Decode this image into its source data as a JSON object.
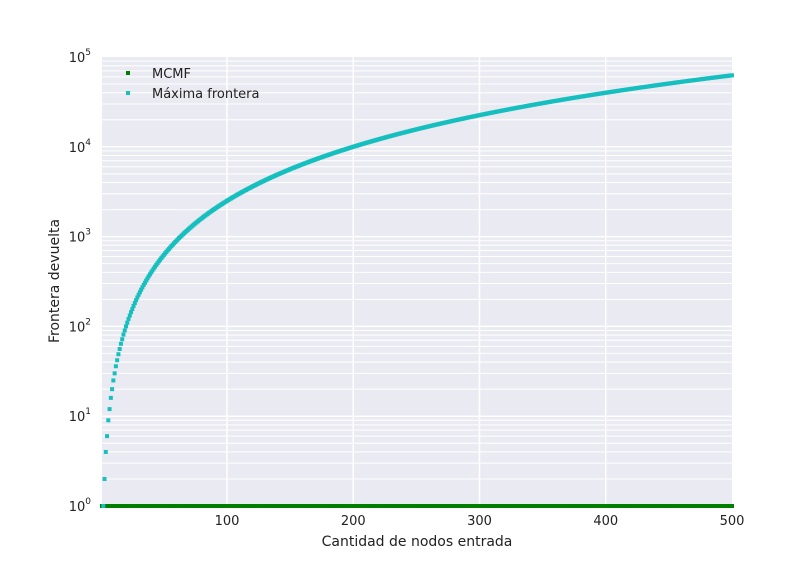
{
  "chart_data": {
    "type": "scatter",
    "title": "",
    "xlabel": "Cantidad de nodos entrada",
    "ylabel": "Frontera devuelta",
    "xlim": [
      1,
      500
    ],
    "ylim": [
      1,
      100000
    ],
    "yscale": "log",
    "grid": true,
    "legend_position": "top-left",
    "x_ticks": [
      {
        "value": 100,
        "label": "100"
      },
      {
        "value": 200,
        "label": "200"
      },
      {
        "value": 300,
        "label": "300"
      },
      {
        "value": 400,
        "label": "400"
      },
      {
        "value": 500,
        "label": "500"
      }
    ],
    "y_ticks": [
      {
        "value": 1,
        "base": "10",
        "exp": "0"
      },
      {
        "value": 10,
        "base": "10",
        "exp": "1"
      },
      {
        "value": 100,
        "base": "10",
        "exp": "2"
      },
      {
        "value": 1000,
        "base": "10",
        "exp": "3"
      },
      {
        "value": 10000,
        "base": "10",
        "exp": "4"
      },
      {
        "value": 100000,
        "base": "10",
        "exp": "5"
      }
    ],
    "series": [
      {
        "name": "MCMF",
        "color": "#007f00",
        "marker": "square",
        "x_range": [
          1,
          500
        ],
        "formula": "y = 1",
        "sample": [
          [
            1,
            1
          ],
          [
            100,
            1
          ],
          [
            200,
            1
          ],
          [
            300,
            1
          ],
          [
            400,
            1
          ],
          [
            500,
            1
          ]
        ]
      },
      {
        "name": "Máxima frontera",
        "color": "#17bfbf",
        "marker": "square",
        "x_range": [
          1,
          500
        ],
        "formula": "y = floor(x/2) * ceil(x/2)",
        "sample": [
          [
            2,
            1
          ],
          [
            3,
            2
          ],
          [
            4,
            4
          ],
          [
            5,
            6
          ],
          [
            10,
            25
          ],
          [
            20,
            100
          ],
          [
            50,
            625
          ],
          [
            100,
            2500
          ],
          [
            200,
            10000
          ],
          [
            300,
            22500
          ],
          [
            400,
            40000
          ],
          [
            500,
            62500
          ]
        ]
      }
    ]
  }
}
